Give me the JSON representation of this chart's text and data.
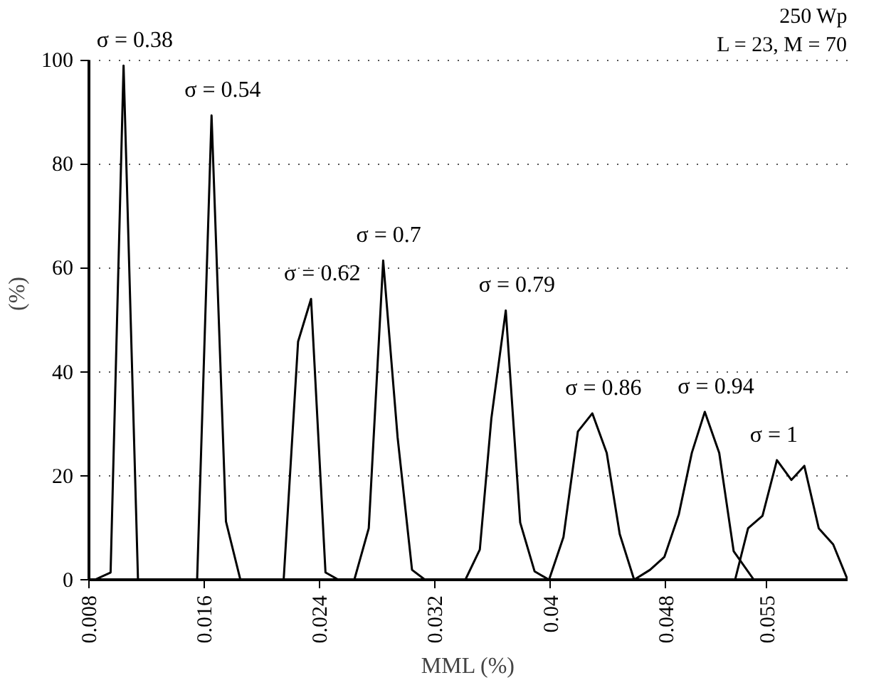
{
  "chart_data": {
    "type": "line",
    "xlabel": "MML (%)",
    "ylabel": "(%)",
    "xlim": [
      0.008,
      0.0606
    ],
    "ylim": [
      0,
      100
    ],
    "xticks": [
      0.008,
      0.016,
      0.024,
      0.032,
      0.04,
      0.048,
      0.055
    ],
    "yticks": [
      0,
      20,
      40,
      60,
      80,
      100
    ],
    "grid": "y",
    "marker": "none",
    "line_style": "solid",
    "series": [
      {
        "color": "#000000",
        "x": [
          0.0084,
          0.0095,
          0.0104,
          0.0114
        ],
        "values": [
          0,
          1.4,
          98.9,
          0
        ]
      },
      {
        "color": "#000000",
        "x": [
          0.0155,
          0.0165,
          0.0175,
          0.0185
        ],
        "values": [
          0,
          89.3,
          11.2,
          0
        ]
      },
      {
        "color": "#000000",
        "x": [
          0.0215,
          0.0225,
          0.0234,
          0.0244,
          0.0253
        ],
        "values": [
          0,
          45.8,
          54,
          1.4,
          0
        ]
      },
      {
        "color": "#000000",
        "x": [
          0.0264,
          0.0274,
          0.0284,
          0.0294,
          0.0304,
          0.0313
        ],
        "values": [
          0,
          9.9,
          61.4,
          27.4,
          1.9,
          0
        ]
      },
      {
        "color": "#000000",
        "x": [
          0.0341,
          0.0351,
          0.0359,
          0.0369,
          0.0379,
          0.0389,
          0.0399
        ],
        "values": [
          0,
          5.8,
          31,
          51.8,
          11,
          1.6,
          0
        ]
      },
      {
        "color": "#000000",
        "x": [
          0.0399,
          0.0409,
          0.0419,
          0.0429,
          0.0439,
          0.0448,
          0.0458
        ],
        "values": [
          0,
          8.2,
          28.5,
          32,
          24.4,
          8.8,
          0
        ]
      },
      {
        "color": "#000000",
        "x": [
          0.0458,
          0.0469,
          0.0479,
          0.0489,
          0.0498,
          0.0507,
          0.0517,
          0.0527,
          0.0541
        ],
        "values": [
          0,
          1.9,
          4.4,
          12.6,
          24.4,
          32.3,
          24.4,
          5.5,
          0
        ]
      },
      {
        "color": "#000000",
        "x": [
          0.0528,
          0.0537,
          0.0547,
          0.0557,
          0.0567,
          0.0576,
          0.0586,
          0.0596,
          0.0606
        ],
        "values": [
          0,
          9.9,
          12.3,
          23,
          19.2,
          21.9,
          9.9,
          6.8,
          0
        ]
      }
    ],
    "annotations": [
      {
        "text": "σ = 0.38",
        "x": 0.0104,
        "y": 98.9
      },
      {
        "text": "σ = 0.54",
        "x": 0.0165,
        "y": 89.3
      },
      {
        "text": "σ = 0.62",
        "x": 0.0234,
        "y": 54
      },
      {
        "text": "σ = 0.7",
        "x": 0.0284,
        "y": 61.4
      },
      {
        "text": "σ = 0.79",
        "x": 0.0369,
        "y": 51.8
      },
      {
        "text": "σ = 0.86",
        "x": 0.0429,
        "y": 32
      },
      {
        "text": "σ = 0.94",
        "x": 0.0507,
        "y": 32.3
      },
      {
        "text": "σ = 1",
        "x": 0.0557,
        "y": 23
      },
      "250 Wp",
      "L = 23, M = 70"
    ]
  }
}
